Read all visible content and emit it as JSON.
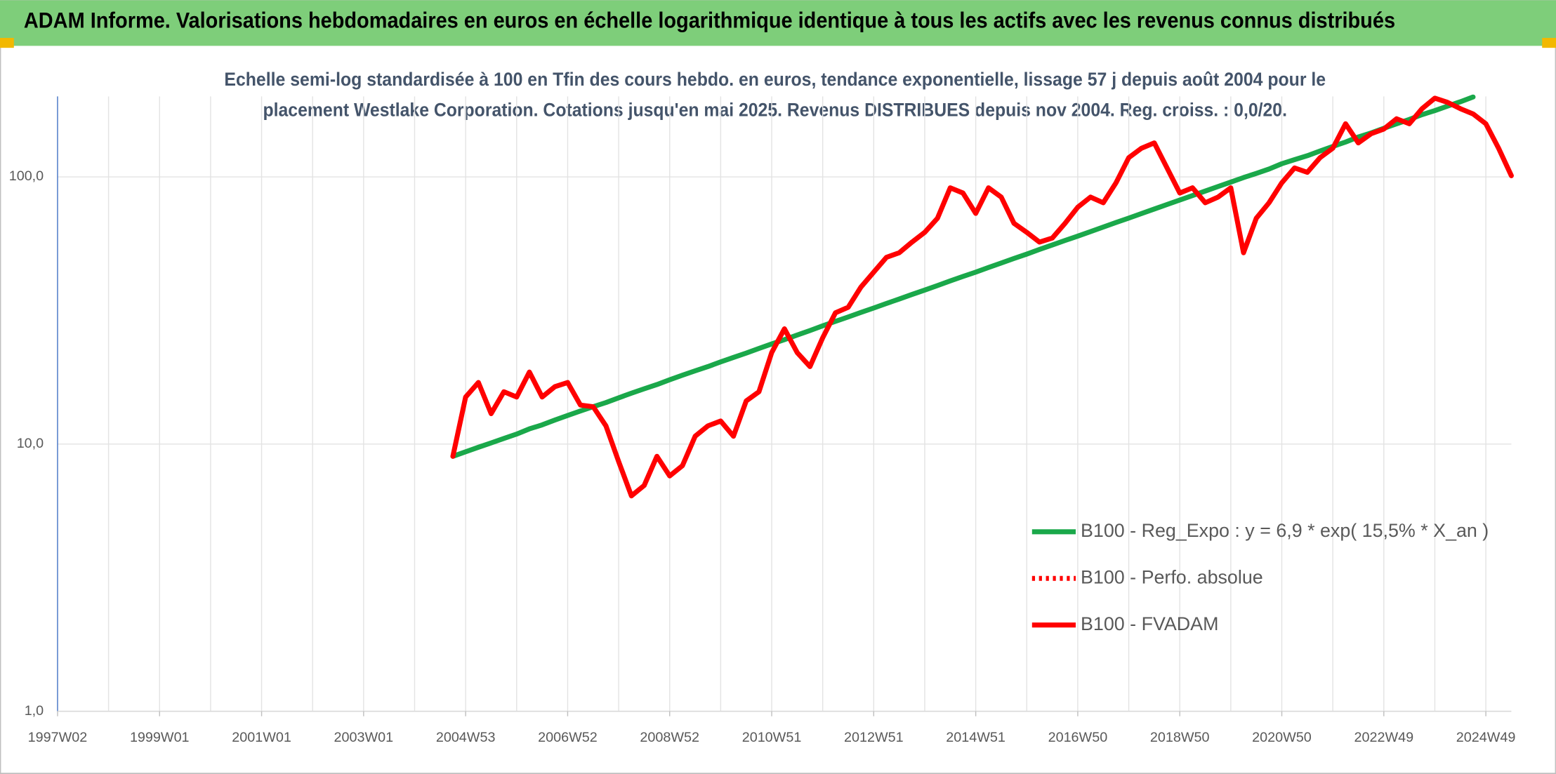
{
  "chart_data": {
    "type": "line",
    "title": "ADAM Informe. Valorisations hebdomadaires en euros en échelle logarithmique identique à tous les actifs avec les revenus connus distribués",
    "subtitle": [
      "Echelle semi-log standardisée à 100 en Tfin des cours hebdo. en euros, tendance exponentielle, lissage 57 j depuis août 2004 pour le",
      "placement Westlake Corporation. Cotations jusqu'en mai 2025. Revenus DISTRIBUES depuis nov 2004. Reg. croiss. : 0,0/20."
    ],
    "log_scale": true,
    "grid": true,
    "legend": "right",
    "ylim": [
      1,
      200
    ],
    "yticks": [
      {
        "value": 1,
        "label": "1,0"
      },
      {
        "value": 10,
        "label": "10,0"
      },
      {
        "value": 100,
        "label": "100,0"
      }
    ],
    "categories": [
      "1997W02",
      null,
      null,
      null,
      null,
      null,
      null,
      null,
      "1999W01",
      null,
      null,
      null,
      null,
      null,
      null,
      null,
      "2001W01",
      null,
      null,
      null,
      null,
      null,
      null,
      null,
      "2003W01",
      null,
      null,
      null,
      null,
      null,
      null,
      null,
      "2004W53",
      null,
      null,
      null,
      null,
      null,
      null,
      null,
      "2006W52",
      null,
      null,
      null,
      null,
      null,
      null,
      null,
      "2008W52",
      null,
      null,
      null,
      null,
      null,
      null,
      null,
      "2010W51",
      null,
      null,
      null,
      null,
      null,
      null,
      null,
      "2012W51",
      null,
      null,
      null,
      null,
      null,
      null,
      null,
      "2014W51",
      null,
      null,
      null,
      null,
      null,
      null,
      null,
      "2016W50",
      null,
      null,
      null,
      null,
      null,
      null,
      null,
      "2018W50",
      null,
      null,
      null,
      null,
      null,
      null,
      null,
      "2020W50",
      null,
      null,
      null,
      null,
      null,
      null,
      null,
      "2022W49",
      null,
      null,
      null,
      null,
      null,
      null,
      null,
      "2024W49",
      null,
      null
    ],
    "series": [
      {
        "name": "B100 - Reg_Expo : y = 6,9 * exp( 15,5% *  X_an )",
        "color": "#1aa84a",
        "dash": "solid",
        "values": [
          null,
          null,
          null,
          null,
          null,
          null,
          null,
          null,
          null,
          null,
          null,
          null,
          null,
          null,
          null,
          null,
          null,
          null,
          null,
          null,
          null,
          null,
          null,
          null,
          null,
          null,
          null,
          null,
          null,
          null,
          null,
          9.0,
          9.36,
          9.73,
          10.1,
          10.5,
          10.9,
          11.4,
          11.8,
          12.3,
          12.8,
          13.3,
          13.8,
          14.3,
          14.9,
          15.5,
          16.1,
          16.7,
          17.4,
          18.1,
          18.8,
          19.5,
          20.3,
          21.1,
          21.9,
          22.8,
          23.7,
          24.6,
          25.6,
          26.6,
          27.7,
          28.8,
          29.9,
          31.1,
          32.3,
          33.6,
          34.9,
          36.3,
          37.7,
          39.2,
          40.8,
          42.4,
          44.0,
          45.8,
          47.6,
          49.5,
          51.4,
          53.5,
          55.6,
          57.8,
          60.0,
          62.4,
          64.9,
          67.5,
          70.1,
          72.9,
          75.8,
          78.8,
          81.9,
          85.1,
          88.5,
          92.0,
          95.6,
          99.4,
          103,
          107,
          112,
          116,
          120,
          125,
          130,
          135,
          141,
          146,
          152,
          158,
          164,
          171,
          177,
          184,
          191,
          199,
          null,
          null,
          null
        ]
      },
      {
        "name": "B100 - Perfo. absolue",
        "color": "#ff0000",
        "dash": "dotted",
        "values": [
          null,
          null,
          null,
          null,
          null,
          null,
          null,
          null,
          null,
          null,
          null,
          null,
          null,
          null,
          null,
          null,
          null,
          null,
          null,
          null,
          null,
          null,
          null,
          null,
          null,
          null,
          null,
          null,
          null,
          null,
          null,
          null,
          null,
          null,
          null,
          null,
          null,
          null,
          null,
          null,
          null,
          null,
          null,
          null,
          null,
          null,
          null,
          null,
          null,
          null,
          null,
          null,
          null,
          null,
          null,
          null,
          null,
          null,
          null,
          null,
          null,
          null,
          null,
          null,
          null,
          null,
          null,
          null,
          null,
          null,
          null,
          null,
          null,
          null,
          null,
          null,
          null,
          null,
          null,
          null,
          null,
          null,
          null,
          null,
          null,
          null,
          null,
          null,
          null,
          null,
          null,
          null,
          null,
          null,
          null,
          null,
          null,
          null,
          null,
          null,
          null,
          null,
          null,
          null,
          null,
          null,
          null,
          null,
          null,
          null,
          null,
          null,
          null,
          null,
          null
        ]
      },
      {
        "name": "B100 - FVADAM",
        "color": "#ff0000",
        "dash": "solid",
        "values": [
          null,
          null,
          null,
          null,
          null,
          null,
          null,
          null,
          null,
          null,
          null,
          null,
          null,
          null,
          null,
          null,
          null,
          null,
          null,
          null,
          null,
          null,
          null,
          null,
          null,
          null,
          null,
          null,
          null,
          null,
          null,
          9,
          15,
          17,
          13,
          15.7,
          15,
          18.6,
          15,
          16.4,
          17,
          14,
          13.8,
          11.7,
          8.6,
          6.4,
          7,
          9,
          7.6,
          8.3,
          10.7,
          11.7,
          12.2,
          10.7,
          14.5,
          15.7,
          22,
          27,
          22,
          19.5,
          25,
          31,
          32.5,
          38.7,
          44,
          50,
          52,
          57,
          62,
          70,
          91,
          87,
          73,
          91,
          84,
          67,
          62,
          57,
          59,
          67,
          77,
          84,
          80,
          95,
          118,
          128,
          134,
          108,
          87,
          91,
          80,
          84,
          91,
          52,
          70,
          80,
          95,
          108,
          104,
          118,
          128,
          158,
          134,
          145,
          151,
          165,
          158,
          180,
          197,
          190,
          180,
          172,
          158,
          128,
          101
        ]
      }
    ]
  }
}
